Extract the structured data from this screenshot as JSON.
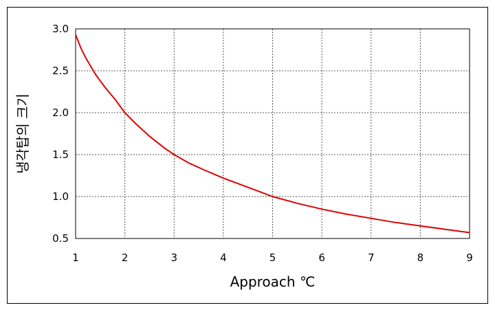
{
  "chart_data": {
    "type": "line",
    "title": "",
    "xlabel": "Approach ℃",
    "ylabel": "냉각탑의 크기",
    "xlim": [
      1,
      9
    ],
    "ylim": [
      0.5,
      3.0
    ],
    "x_ticks": [
      "1",
      "2",
      "3",
      "4",
      "5",
      "6",
      "7",
      "8",
      "9"
    ],
    "y_ticks": [
      "0.5",
      "1.0",
      "1.5",
      "2.0",
      "2.5",
      "3.0"
    ],
    "grid": true,
    "line_color": "#e00000",
    "series": [
      {
        "x": [
          1.0,
          1.1,
          1.2,
          1.3,
          1.4,
          1.5,
          1.6,
          1.8,
          2.0,
          2.2,
          2.5,
          2.8,
          3.0,
          3.3,
          3.6,
          4.0,
          4.5,
          5.0,
          5.5,
          6.0,
          6.5,
          7.0,
          7.5,
          8.0,
          8.5,
          9.0
        ],
        "y": [
          2.93,
          2.78,
          2.66,
          2.56,
          2.46,
          2.38,
          2.3,
          2.16,
          2.0,
          1.88,
          1.72,
          1.58,
          1.5,
          1.4,
          1.32,
          1.22,
          1.11,
          1.0,
          0.92,
          0.85,
          0.79,
          0.74,
          0.69,
          0.65,
          0.61,
          0.57
        ]
      }
    ]
  }
}
